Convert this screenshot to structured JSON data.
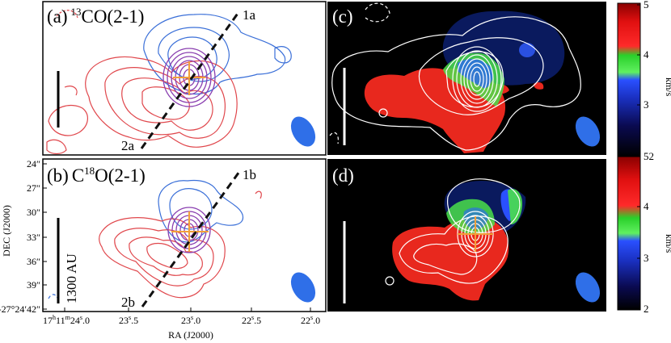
{
  "panels": {
    "a": {
      "label_prefix": "(a)",
      "label_sup": "13",
      "label_main": "CO(2-1)",
      "cut_top": "1a",
      "cut_bottom": "2a"
    },
    "b": {
      "label_prefix": "(b)",
      "label_main_pre": "C",
      "label_sup": "18",
      "label_main": "O(2-1)",
      "cut_top": "1b",
      "cut_bottom": "2b",
      "scale_text": "1300 AU"
    },
    "c": {
      "label": "(c)"
    },
    "d": {
      "label": "(d)"
    }
  },
  "axes": {
    "ylabel": "DEC (J2000)",
    "xlabel": "RA (J2000)",
    "y_ticks": [
      "24″",
      "27″",
      "30″",
      "33″",
      "36″",
      "39″",
      "-27°24′42″"
    ],
    "x_ticks": [
      {
        "h": "17",
        "hu": "h",
        "m": "11",
        "mu": "m",
        "s": "24",
        "su": "s",
        "d": ".0"
      },
      {
        "s": "23",
        "su": "s",
        "d": ".5"
      },
      {
        "s": "23",
        "su": "s",
        "d": ".0"
      },
      {
        "s": "22",
        "su": "s",
        "d": ".5"
      },
      {
        "s": "22",
        "su": "s",
        "d": ".0"
      }
    ]
  },
  "colorbar": {
    "unit": "km/s",
    "top_ticks": [
      "5",
      "4",
      "3",
      "52"
    ],
    "bottom_ticks": [
      "4",
      "3",
      "2"
    ]
  },
  "colors": {
    "red_contour": "#e0474c",
    "blue_contour": "#3a6fd8",
    "purple_contour": "#8a3fb0",
    "orange_cross": "#f2a03a",
    "beam": "#2f6fe8",
    "map_red": "#e8281e",
    "map_blue": "#0a1a5e",
    "map_green": "#4ae04a"
  }
}
